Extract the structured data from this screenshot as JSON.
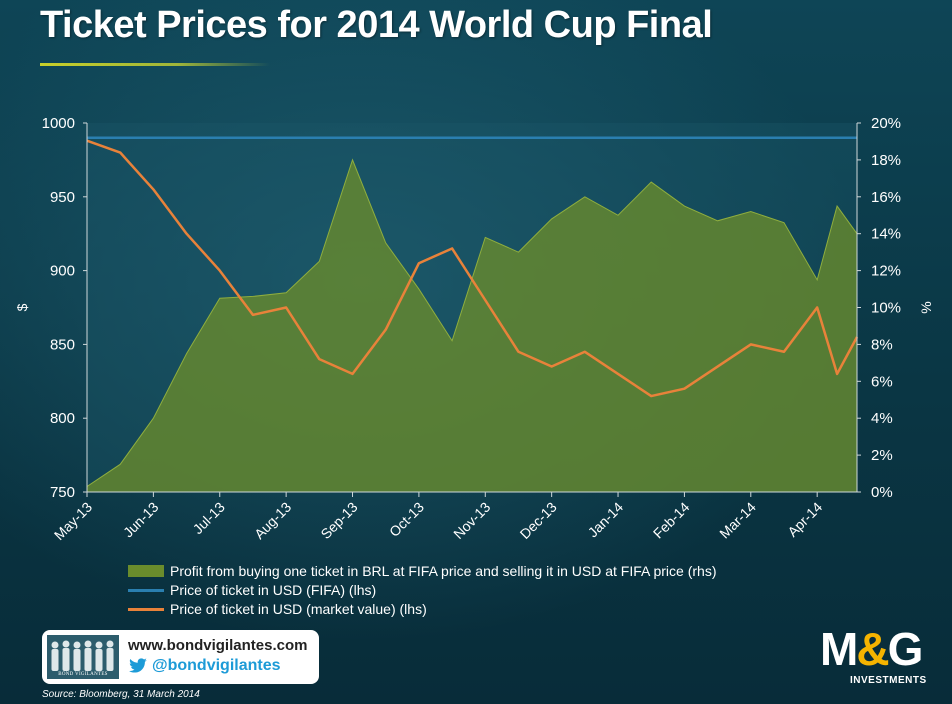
{
  "title": "Ticket Prices for 2014 World Cup Final",
  "colors": {
    "area": "#6a8c2c",
    "fifa_line": "#2a7fb0",
    "market_line": "#e8823a",
    "title_rule": "#b8c535"
  },
  "legend": [
    "Profit from buying one ticket in BRL at FIFA price and selling it in USD at FIFA price (rhs)",
    "Price of ticket in USD (FIFA) (lhs)",
    "Price of ticket in USD (market value) (lhs)"
  ],
  "footer": {
    "website": "www.bondvigilantes.com",
    "twitter": "@bondvigilantes",
    "crowd_label": "BOND VIGILANTES",
    "source": "Source: Bloomberg, 31 March 2014",
    "logo_m": "M",
    "logo_amp": "&",
    "logo_g": "G",
    "logo_sub": "INVESTMENTS"
  },
  "chart_data": {
    "type": "line",
    "xlabels": [
      "May-13",
      "Jun-13",
      "Jul-13",
      "Aug-13",
      "Sep-13",
      "Oct-13",
      "Nov-13",
      "Dec-13",
      "Jan-14",
      "Feb-14",
      "Mar-14",
      "Apr-14"
    ],
    "ylabel_left": "$",
    "ylabel_right": "%",
    "ylim_left": [
      750,
      1000
    ],
    "ylim_right": [
      0,
      20
    ],
    "yticks_left": [
      "1000",
      "950",
      "900",
      "850",
      "800",
      "750"
    ],
    "yticks_right": [
      "20%",
      "18%",
      "16%",
      "14%",
      "12%",
      "10%",
      "8%",
      "6%",
      "4%",
      "2%",
      "0%"
    ],
    "x": [
      0,
      0.5,
      1,
      1.5,
      2,
      2.5,
      3,
      3.5,
      4,
      4.5,
      5,
      5.5,
      6,
      6.5,
      7,
      7.5,
      8,
      8.5,
      9,
      9.5,
      10,
      10.5,
      11,
      11.3,
      11.6
    ],
    "series": [
      {
        "name": "Profit from buying one ticket in BRL at FIFA price and selling it in USD at FIFA price (rhs)",
        "axis": "right",
        "style": "area",
        "values": [
          0.3,
          1.5,
          4.0,
          7.5,
          10.5,
          10.6,
          10.8,
          12.5,
          18.0,
          13.5,
          11.0,
          8.2,
          13.8,
          13.0,
          14.8,
          16.0,
          15.0,
          16.8,
          15.5,
          14.7,
          15.2,
          14.6,
          11.5,
          15.5,
          14.0
        ]
      },
      {
        "name": "Price of ticket in USD (FIFA) (lhs)",
        "axis": "left",
        "style": "line",
        "values": [
          990,
          990,
          990,
          990,
          990,
          990,
          990,
          990,
          990,
          990,
          990,
          990,
          990,
          990,
          990,
          990,
          990,
          990,
          990,
          990,
          990,
          990,
          990,
          990,
          990
        ]
      },
      {
        "name": "Price of ticket in USD (market value) (lhs)",
        "axis": "left",
        "style": "line",
        "values": [
          988,
          980,
          955,
          925,
          900,
          870,
          875,
          840,
          830,
          860,
          905,
          915,
          880,
          845,
          835,
          845,
          830,
          815,
          820,
          835,
          850,
          845,
          875,
          830,
          855
        ]
      }
    ]
  }
}
